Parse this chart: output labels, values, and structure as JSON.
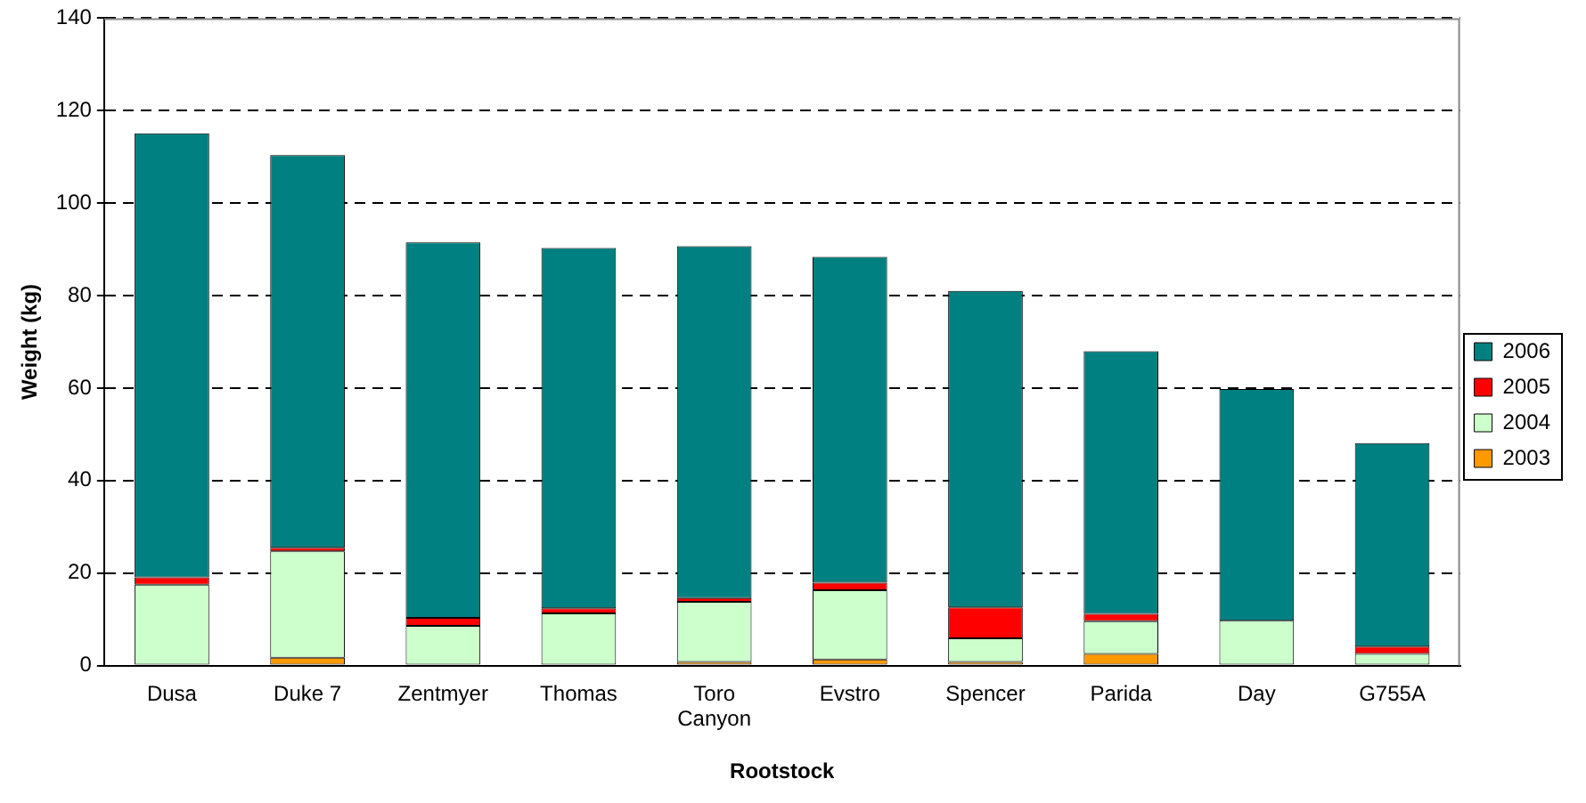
{
  "chart_data": {
    "type": "bar",
    "stacked": true,
    "xlabel": "Rootstock",
    "ylabel": "Weight (kg)",
    "categories": [
      "Dusa",
      "Duke 7",
      "Zentmyer",
      "Thomas",
      "Toro Canyon",
      "Evstro",
      "Spencer",
      "Parida",
      "Day",
      "G755A"
    ],
    "series": [
      {
        "name": "2003",
        "color": "#ff9900",
        "values": [
          0,
          1.7,
          0,
          0,
          0.8,
          1.3,
          0.8,
          2.5,
          0,
          0
        ]
      },
      {
        "name": "2004",
        "color": "#ccffcc",
        "values": [
          17.5,
          23,
          8.6,
          11.3,
          13,
          15,
          5.1,
          7.1,
          9.7,
          2.5
        ]
      },
      {
        "name": "2005",
        "color": "#ff0000",
        "values": [
          1.6,
          0.8,
          1.7,
          1.1,
          0.8,
          1.6,
          6.7,
          1.6,
          0,
          1.6
        ]
      },
      {
        "name": "2006",
        "color": "#008080",
        "values": [
          96,
          84.9,
          81.2,
          77.9,
          76.1,
          70.5,
          68.4,
          56.8,
          50.1,
          44
        ]
      }
    ],
    "ylim": [
      0,
      140
    ],
    "yticks": [
      0,
      20,
      40,
      60,
      80,
      100,
      120,
      140
    ],
    "grid": "y",
    "legend": "right"
  }
}
